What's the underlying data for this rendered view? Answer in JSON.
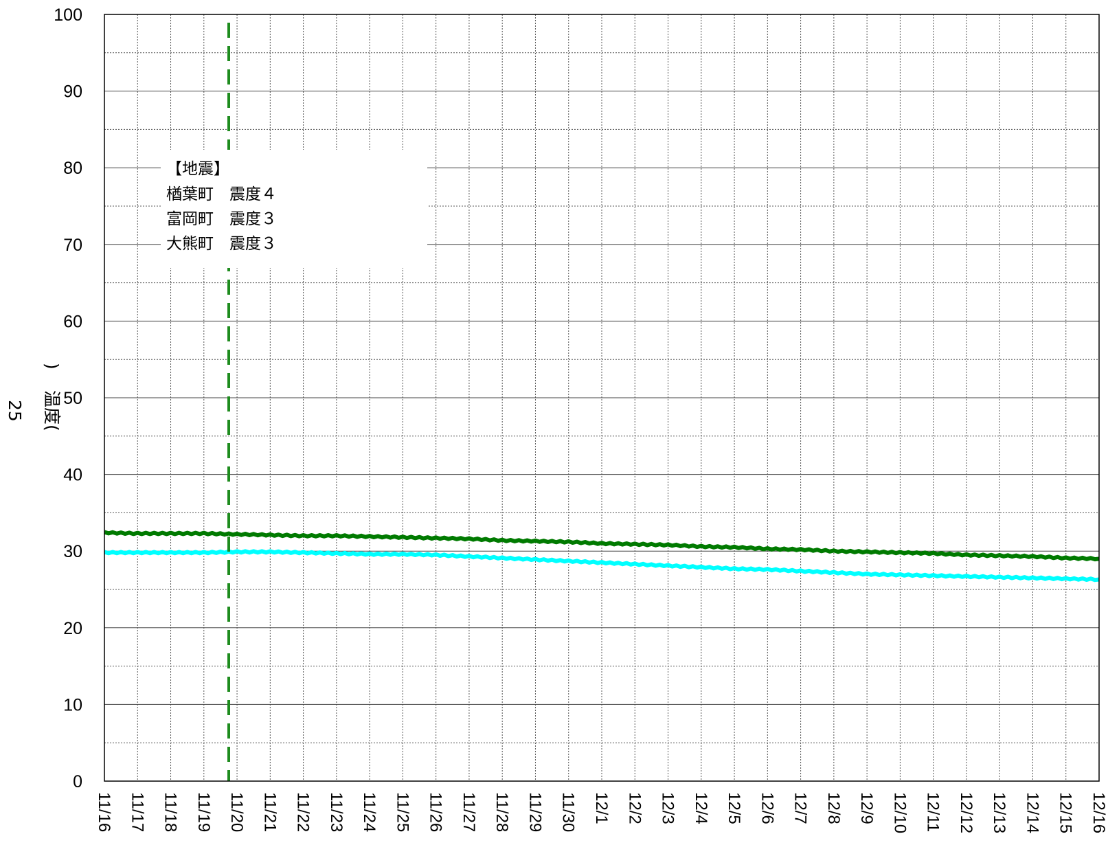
{
  "chart_data": {
    "type": "line",
    "title": "",
    "xlabel": "",
    "ylabel_lines": [
      "温度(",
      "25",
      ")"
    ],
    "ylim": [
      0,
      100
    ],
    "yticks": [
      0,
      10,
      20,
      30,
      40,
      50,
      60,
      70,
      80,
      90,
      100
    ],
    "x_start": "11/16",
    "x_end": "12/16",
    "xticks": [
      "11/16",
      "11/17",
      "11/18",
      "11/19",
      "11/20",
      "11/21",
      "11/22",
      "11/23",
      "11/24",
      "11/25",
      "11/26",
      "11/27",
      "11/28",
      "11/29",
      "11/30",
      "12/1",
      "12/2",
      "12/3",
      "12/4",
      "12/5",
      "12/6",
      "12/7",
      "12/8",
      "12/9",
      "12/10",
      "12/11",
      "12/12",
      "12/13",
      "12/14",
      "12/15",
      "12/16"
    ],
    "grid": true,
    "event_line": {
      "date": "11/19 18:00",
      "color": "#1e8c1e"
    },
    "annotation": [
      "【地震】",
      "楢葉町　震度４",
      "富岡町　震度３",
      "大熊町　震度３"
    ],
    "series": [
      {
        "color": "#007a00",
        "x": [
          "11/16",
          "11/17",
          "11/18",
          "11/19",
          "11/20",
          "11/21",
          "11/22",
          "11/23",
          "11/24",
          "11/25",
          "11/26",
          "11/27",
          "11/28",
          "11/29",
          "11/30",
          "12/1",
          "12/2",
          "12/3",
          "12/4",
          "12/5",
          "12/6",
          "12/7",
          "12/8",
          "12/9",
          "12/10",
          "12/11",
          "12/12",
          "12/13",
          "12/14",
          "12/15",
          "12/16"
        ],
        "values": [
          32.4,
          32.3,
          32.3,
          32.3,
          32.2,
          32.1,
          32.0,
          32.0,
          31.9,
          31.8,
          31.7,
          31.6,
          31.4,
          31.3,
          31.2,
          31.0,
          30.9,
          30.8,
          30.6,
          30.5,
          30.3,
          30.2,
          30.0,
          29.9,
          29.8,
          29.7,
          29.5,
          29.4,
          29.3,
          29.1,
          29.0
        ]
      },
      {
        "color": "#00ffff",
        "x": [
          "11/16",
          "11/17",
          "11/18",
          "11/19",
          "11/20",
          "11/21",
          "11/22",
          "11/23",
          "11/24",
          "11/25",
          "11/26",
          "11/27",
          "11/28",
          "11/29",
          "11/30",
          "12/1",
          "12/2",
          "12/3",
          "12/4",
          "12/5",
          "12/6",
          "12/7",
          "12/8",
          "12/9",
          "12/10",
          "12/11",
          "12/12",
          "12/13",
          "12/14",
          "12/15",
          "12/16"
        ],
        "values": [
          29.8,
          29.8,
          29.8,
          29.8,
          29.9,
          29.9,
          29.8,
          29.7,
          29.6,
          29.6,
          29.5,
          29.3,
          29.1,
          28.9,
          28.7,
          28.5,
          28.3,
          28.1,
          27.9,
          27.7,
          27.6,
          27.4,
          27.2,
          27.0,
          26.9,
          26.8,
          26.7,
          26.6,
          26.5,
          26.4,
          26.3
        ]
      }
    ]
  }
}
